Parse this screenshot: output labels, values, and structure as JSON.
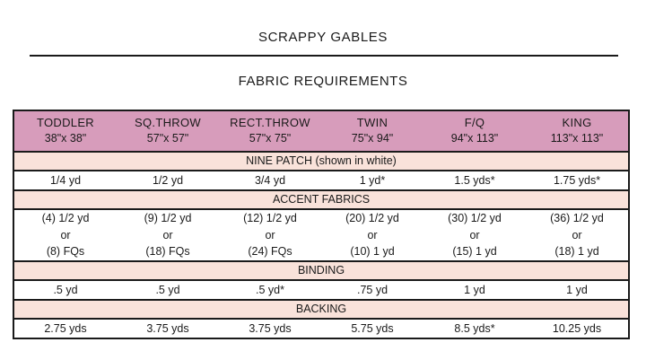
{
  "page": {
    "title": "SCRAPPY GABLES",
    "subtitle": "FABRIC REQUIREMENTS"
  },
  "colors": {
    "header_bg": "#d79cbb",
    "band_bg": "#f9e2da",
    "border": "#1a1a1a",
    "text": "#1a1a1a"
  },
  "table": {
    "columns": [
      {
        "name": "TODDLER",
        "size": "38\"x 38\""
      },
      {
        "name": "SQ.THROW",
        "size": "57\"x 57\""
      },
      {
        "name": "RECT.THROW",
        "size": "57\"x 75\""
      },
      {
        "name": "TWIN",
        "size": "75\"x 94\""
      },
      {
        "name": "F/Q",
        "size": "94\"x 113\""
      },
      {
        "name": "KING",
        "size": "113\"x 113\""
      }
    ],
    "nine_patch": {
      "label": "NINE PATCH",
      "note": "(shown in white)",
      "values": [
        "1/4 yd",
        "1/2 yd",
        "3/4 yd",
        "1 yd*",
        "1.5 yds*",
        "1.75 yds*"
      ]
    },
    "accent": {
      "label": "ACCENT FABRICS",
      "cells": [
        [
          "(4) 1/2 yd",
          "or",
          "(8) FQs"
        ],
        [
          "(9) 1/2 yd",
          "or",
          "(18) FQs"
        ],
        [
          "(12) 1/2 yd",
          "or",
          "(24) FQs"
        ],
        [
          "(20) 1/2 yd",
          "or",
          "(10) 1 yd"
        ],
        [
          "(30) 1/2 yd",
          "or",
          "(15) 1 yd"
        ],
        [
          "(36) 1/2 yd",
          "or",
          "(18) 1 yd"
        ]
      ]
    },
    "binding": {
      "label": "BINDING",
      "values": [
        ".5 yd",
        ".5 yd",
        ".5 yd*",
        ".75 yd",
        "1 yd",
        "1 yd"
      ]
    },
    "backing": {
      "label": "BACKING",
      "values": [
        "2.75 yds",
        "3.75 yds",
        "3.75 yds",
        "5.75 yds",
        "8.5 yds*",
        "10.25 yds"
      ]
    }
  }
}
